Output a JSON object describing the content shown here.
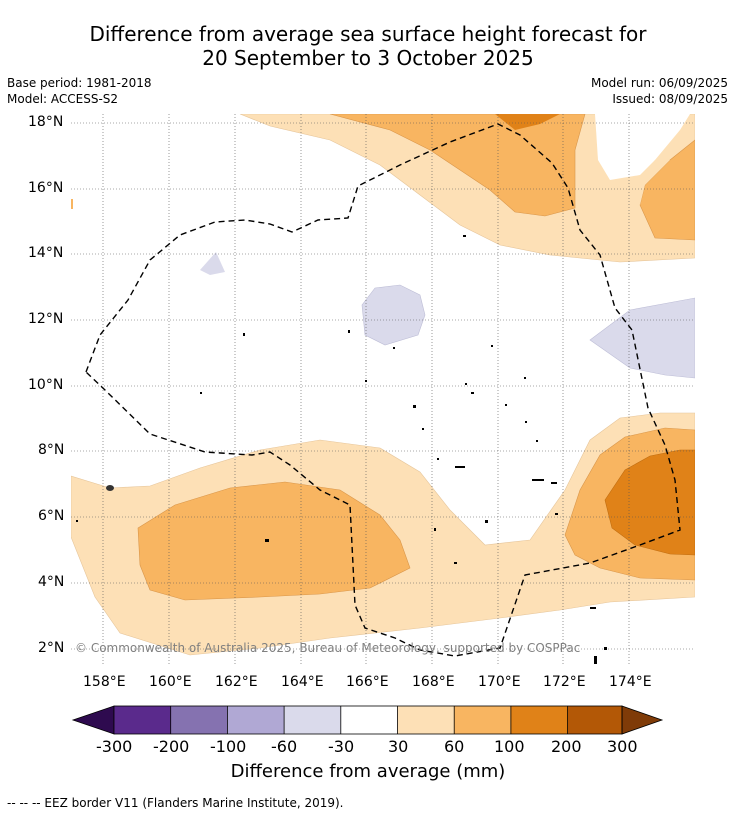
{
  "title_line1": "Difference from average sea surface height forecast for",
  "title_line2": "20 September to 3 October 2025",
  "meta": {
    "base_period": "Base period: 1981-2018",
    "model": "Model: ACCESS-S2",
    "model_run": "Model run: 06/09/2025",
    "issued": "Issued: 08/09/2025"
  },
  "lat_ticks": [
    "18°N",
    "16°N",
    "14°N",
    "12°N",
    "10°N",
    "8°N",
    "6°N",
    "4°N",
    "2°N"
  ],
  "lon_ticks": [
    "158°E",
    "160°E",
    "162°E",
    "164°E",
    "166°E",
    "168°E",
    "170°E",
    "172°E",
    "174°E"
  ],
  "credit": "© Commonwealth of Australia 2025, Bureau of Meteorology, supported by COSPPac",
  "colorbar": {
    "title": "Difference from average (mm)",
    "ticks": [
      "-300",
      "-200",
      "-100",
      "-60",
      "-30",
      "30",
      "60",
      "100",
      "200",
      "300"
    ],
    "colors": [
      "#2e0a4f",
      "#5a2a8c",
      "#8572b0",
      "#b0a8d4",
      "#dadaeb",
      "#ffffff",
      "#fde0b6",
      "#f8b561",
      "#e08218",
      "#b35806",
      "#7f3b08"
    ]
  },
  "footer": "--  --  -- EEZ border V11 (Flanders Marine Institute, 2019)."
}
